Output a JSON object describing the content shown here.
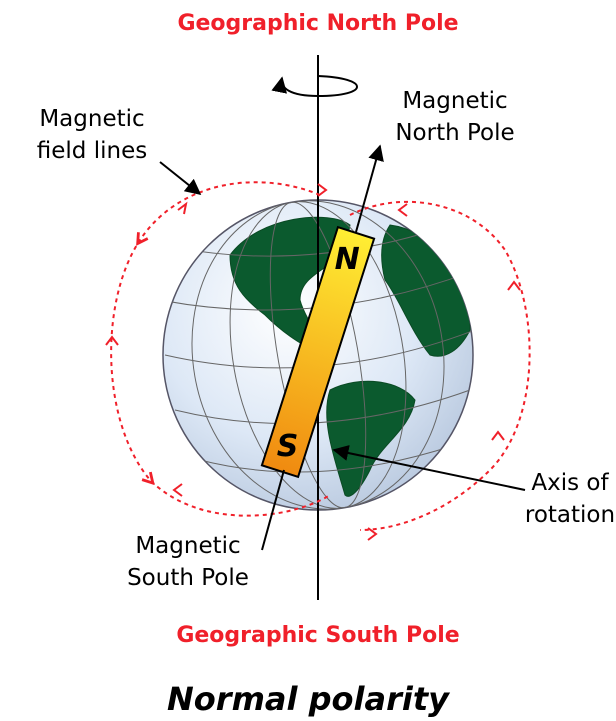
{
  "title": "Geographic North Pole",
  "labels": {
    "magnetic_north": [
      "Magnetic",
      "North Pole"
    ],
    "field_lines": [
      "Magnetic",
      "field lines"
    ],
    "axis": [
      "Axis of",
      "rotation"
    ],
    "magnetic_south": [
      "Magnetic",
      "South Pole"
    ]
  },
  "magnet": {
    "north": "N",
    "south": "S"
  },
  "bottom_title": "Geographic South Pole",
  "caption": "Normal polarity"
}
